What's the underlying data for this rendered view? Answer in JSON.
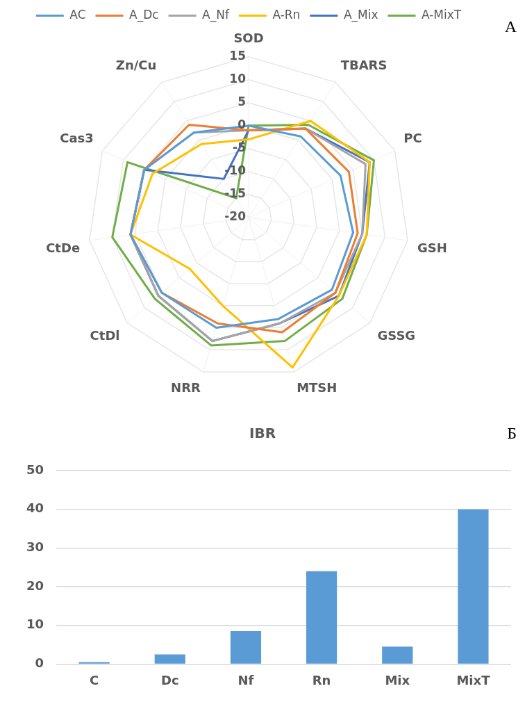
{
  "chart_data": [
    {
      "type": "radar",
      "categories": [
        "SOD",
        "TBARS",
        "PC",
        "GSH",
        "GSSG",
        "MTSH",
        "NRR",
        "CtDl",
        "CtDe",
        "Cas3",
        "Zn/Cu"
      ],
      "series": [
        {
          "name": "AC",
          "color": "#5b9bd5",
          "values": [
            0,
            1,
            2,
            3,
            4,
            3,
            5,
            5,
            6,
            5,
            2
          ]
        },
        {
          "name": "A_Dc",
          "color": "#ed7d31",
          "values": [
            -1,
            3,
            4,
            4,
            5,
            6,
            4,
            5,
            6,
            5,
            4
          ]
        },
        {
          "name": "A_Nf",
          "color": "#a5a5a5",
          "values": [
            -1,
            3,
            8,
            5,
            5,
            4,
            8,
            6,
            6,
            5,
            2
          ]
        },
        {
          "name": "A-Rn",
          "color": "#ffc000",
          "values": [
            -3,
            5,
            9,
            6,
            6,
            14,
            0,
            -3,
            6,
            3,
            -1
          ]
        },
        {
          "name": "A_Mix",
          "color": "#4472c4",
          "values": [
            -1,
            3,
            9,
            5,
            6,
            4,
            8,
            6,
            6,
            5,
            -10
          ]
        },
        {
          "name": "A-MixT",
          "color": "#70ad47",
          "values": [
            0,
            4,
            10,
            6,
            7,
            8,
            9,
            7,
            10,
            9,
            -15
          ]
        }
      ],
      "ylim": [
        -20,
        15
      ],
      "yticks": [
        -20,
        -15,
        -10,
        -5,
        0,
        5,
        10,
        15
      ],
      "grid": true,
      "legend": "top",
      "marker": "none",
      "annotations": [
        "А"
      ]
    },
    {
      "type": "bar",
      "title": "IBR",
      "categories": [
        "C",
        "Dc",
        "Nf",
        "Rn",
        "Mix",
        "MixT"
      ],
      "values": [
        0.5,
        2.5,
        8.5,
        24,
        4.5,
        40
      ],
      "color": "#5b9bd5",
      "ylim": [
        0,
        50
      ],
      "yticks": [
        0,
        10,
        20,
        30,
        40,
        50
      ],
      "grid": "y",
      "legend": false,
      "annotations": [
        "Б"
      ]
    }
  ]
}
